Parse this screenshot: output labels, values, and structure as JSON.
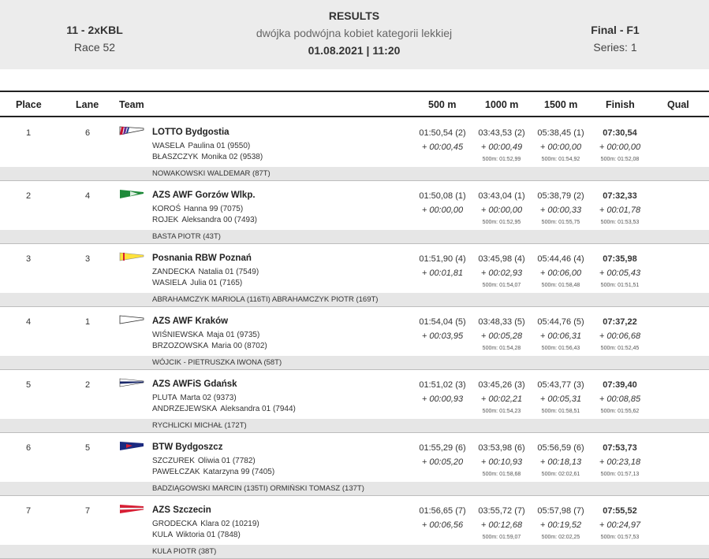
{
  "header": {
    "event_code": "11 - 2xKBL",
    "race": "Race 52",
    "title": "RESULTS",
    "description": "dwójka podwójna kobiet kategorii lekkiej",
    "datetime": "01.08.2021 | 11:20",
    "final": "Final - F1",
    "series": "Series: 1"
  },
  "columns": {
    "place": "Place",
    "lane": "Lane",
    "team": "Team",
    "m500": "500 m",
    "m1000": "1000 m",
    "m1500": "1500 m",
    "finish": "Finish",
    "qual": "Qual"
  },
  "rows": [
    {
      "place": "1",
      "lane": "6",
      "team": "LOTTO Bydgostia",
      "flag": "lotto-flag",
      "m1_sn": "WASELA",
      "m1_gn": "Paulina 01 (9550)",
      "m2_sn": "BŁASZCZYK",
      "m2_gn": "Monika 02 (9538)",
      "coach": "NOWAKOWSKI WALDEMAR (87T)",
      "s500": "01:50,54 (2)",
      "d500": "+ 00:00,45",
      "s1000": "03:43,53 (2)",
      "d1000": "+ 00:00,49",
      "p1000": "500m: 01:52,99",
      "s1500": "05:38,45 (1)",
      "d1500": "+ 00:00,00",
      "p1500": "500m: 01:54,92",
      "fin": "07:30,54",
      "dfin": "+ 00:00,00",
      "pfin": "500m: 01:52,08"
    },
    {
      "place": "2",
      "lane": "4",
      "team": "AZS AWF Gorzów Wlkp.",
      "flag": "green-flag",
      "m1_sn": "KOROŚ",
      "m1_gn": "Hanna 99 (7075)",
      "m2_sn": "ROJEK",
      "m2_gn": "Aleksandra 00 (7493)",
      "coach": "BASTA PIOTR (43T)",
      "s500": "01:50,08 (1)",
      "d500": "+ 00:00,00",
      "s1000": "03:43,04 (1)",
      "d1000": "+ 00:00,00",
      "p1000": "500m: 01:52,95",
      "s1500": "05:38,79 (2)",
      "d1500": "+ 00:00,33",
      "p1500": "500m: 01:55,75",
      "fin": "07:32,33",
      "dfin": "+ 00:01,78",
      "pfin": "500m: 01:53,53"
    },
    {
      "place": "3",
      "lane": "3",
      "team": "Posnania RBW Poznań",
      "flag": "yellow-flag",
      "m1_sn": "ZANDECKA",
      "m1_gn": "Natalia 01 (7549)",
      "m2_sn": "WASIELA",
      "m2_gn": "Julia 01 (7165)",
      "coach": "ABRAHAMCZYK MARIOLA (116TI) ABRAHAMCZYK PIOTR (169T)",
      "s500": "01:51,90 (4)",
      "d500": "+ 00:01,81",
      "s1000": "03:45,98 (4)",
      "d1000": "+ 00:02,93",
      "p1000": "500m: 01:54,07",
      "s1500": "05:44,46 (4)",
      "d1500": "+ 00:06,00",
      "p1500": "500m: 01:58,48",
      "fin": "07:35,98",
      "dfin": "+ 00:05,43",
      "pfin": "500m: 01:51,51"
    },
    {
      "place": "4",
      "lane": "1",
      "team": "AZS AWF Kraków",
      "flag": "white-flag",
      "m1_sn": "WIŚNIEWSKA",
      "m1_gn": "Maja 01 (9735)",
      "m2_sn": "BRZOZOWSKA",
      "m2_gn": "Maria 00 (8702)",
      "coach": "WÓJCIK - PIETRUSZKA IWONA (58T)",
      "s500": "01:54,04 (5)",
      "d500": "+ 00:03,95",
      "s1000": "03:48,33 (5)",
      "d1000": "+ 00:05,28",
      "p1000": "500m: 01:54,28",
      "s1500": "05:44,76 (5)",
      "d1500": "+ 00:06,31",
      "p1500": "500m: 01:56,43",
      "fin": "07:37,22",
      "dfin": "+ 00:06,68",
      "pfin": "500m: 01:52,45"
    },
    {
      "place": "5",
      "lane": "2",
      "team": "AZS AWFiS Gdańsk",
      "flag": "navy-stripe-flag",
      "m1_sn": "PLUTA",
      "m1_gn": "Marta 02 (9373)",
      "m2_sn": "ANDRZEJEWSKA",
      "m2_gn": "Aleksandra 01 (7944)",
      "coach": "RYCHLICKI MICHAŁ (172T)",
      "s500": "01:51,02 (3)",
      "d500": "+ 00:00,93",
      "s1000": "03:45,26 (3)",
      "d1000": "+ 00:02,21",
      "p1000": "500m: 01:54,23",
      "s1500": "05:43,77 (3)",
      "d1500": "+ 00:05,31",
      "p1500": "500m: 01:58,51",
      "fin": "07:39,40",
      "dfin": "+ 00:08,85",
      "pfin": "500m: 01:55,62"
    },
    {
      "place": "6",
      "lane": "5",
      "team": "BTW Bydgoszcz",
      "flag": "navy-red-flag",
      "m1_sn": "SZCZUREK",
      "m1_gn": "Oliwia 01 (7782)",
      "m2_sn": "PAWEŁCZAK",
      "m2_gn": "Katarzyna 99 (7405)",
      "coach": "BADZIĄGOWSKI MARCIN (135TI) ORMIŃSKI TOMASZ (137T)",
      "s500": "01:55,29 (6)",
      "d500": "+ 00:05,20",
      "s1000": "03:53,98 (6)",
      "d1000": "+ 00:10,93",
      "p1000": "500m: 01:58,68",
      "s1500": "05:56,59 (6)",
      "d1500": "+ 00:18,13",
      "p1500": "500m: 02:02,61",
      "fin": "07:53,73",
      "dfin": "+ 00:23,18",
      "pfin": "500m: 01:57,13"
    },
    {
      "place": "7",
      "lane": "7",
      "team": "AZS Szczecin",
      "flag": "red-white-flag",
      "m1_sn": "GRODECKA",
      "m1_gn": "Klara 02 (10219)",
      "m2_sn": "KULA",
      "m2_gn": "Wiktoria 01 (7848)",
      "coach": "KULA PIOTR (38T)",
      "s500": "01:56,65 (7)",
      "d500": "+ 00:06,56",
      "s1000": "03:55,72 (7)",
      "d1000": "+ 00:12,68",
      "p1000": "500m: 01:59,07",
      "s1500": "05:57,98 (7)",
      "d1500": "+ 00:19,52",
      "p1500": "500m: 02:02,25",
      "fin": "07:55,52",
      "dfin": "+ 00:24,97",
      "pfin": "500m: 01:57,53"
    }
  ]
}
